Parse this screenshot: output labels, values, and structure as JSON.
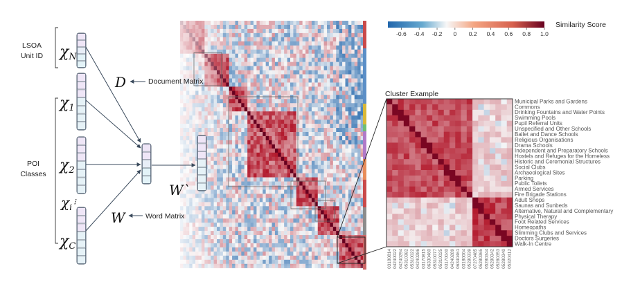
{
  "left_model": {
    "lsoa_label": [
      "LSOA",
      "Unit ID"
    ],
    "poi_label": [
      "POI",
      "Classes"
    ],
    "x_n": {
      "base": "χ",
      "sub": "N"
    },
    "x_1": {
      "base": "χ",
      "sub": "1"
    },
    "x_2": {
      "base": "χ",
      "sub": "2"
    },
    "x_i": {
      "base": "χ",
      "sub": "i"
    },
    "x_c": {
      "base": "χ",
      "sub": "C"
    },
    "d_symbol": "D",
    "document_matrix_label": "Document Matrix",
    "w_symbol": "W",
    "word_matrix_label": "Word Matrix",
    "w_prime_symbol": "W`"
  },
  "colorbar": {
    "ticks": [
      "-0.6",
      "-0.4",
      "-0.2",
      "0",
      "0.2",
      "0.4",
      "0.6",
      "0.8",
      "1.0"
    ],
    "title": "Similarity Score",
    "colors": {
      "neg": "#2c7bb6",
      "zero": "#f7f7f7",
      "pos": "#b2182b"
    }
  },
  "cluster": {
    "title": "Cluster Example",
    "rows": [
      "Municipal Parks and Gardens",
      "Commons",
      "Drinking Fountains and Water Points",
      "Swimming Pools",
      "Pupil Referral Units",
      "Unspecified and Other Schools",
      "Ballet and Dance Schools",
      "Religious Organisations",
      "Drama Schools",
      "Independent and Preparatory Schools",
      "Hostels and Refuges for the Homeless",
      "Historic and Ceremonial Structures",
      "Social Clubs",
      "Archaeological Sites",
      "Parking",
      "Public Toilets",
      "Armed Services",
      "Fire Brigade Stations",
      "Adult Shops",
      "Saunas and Sunbeds",
      "Alternative, Natural and Complementary",
      "Physical Therapy",
      "Foot Related Services",
      "Homeopaths",
      "Slimming Clubs and Services",
      "Doctors Surgeries",
      "Walk-In Centre"
    ],
    "cols": [
      "03180814",
      "04240022",
      "04240294",
      "05310382",
      "05310022",
      "04240286",
      "03170815",
      "06330460",
      "05310077",
      "05310025",
      "03170040",
      "04240289",
      "06340461",
      "03180004",
      "05280339",
      "07270485",
      "05280365",
      "05280344",
      "05280342",
      "05280353",
      "05280340",
      "05320412"
    ]
  }
}
